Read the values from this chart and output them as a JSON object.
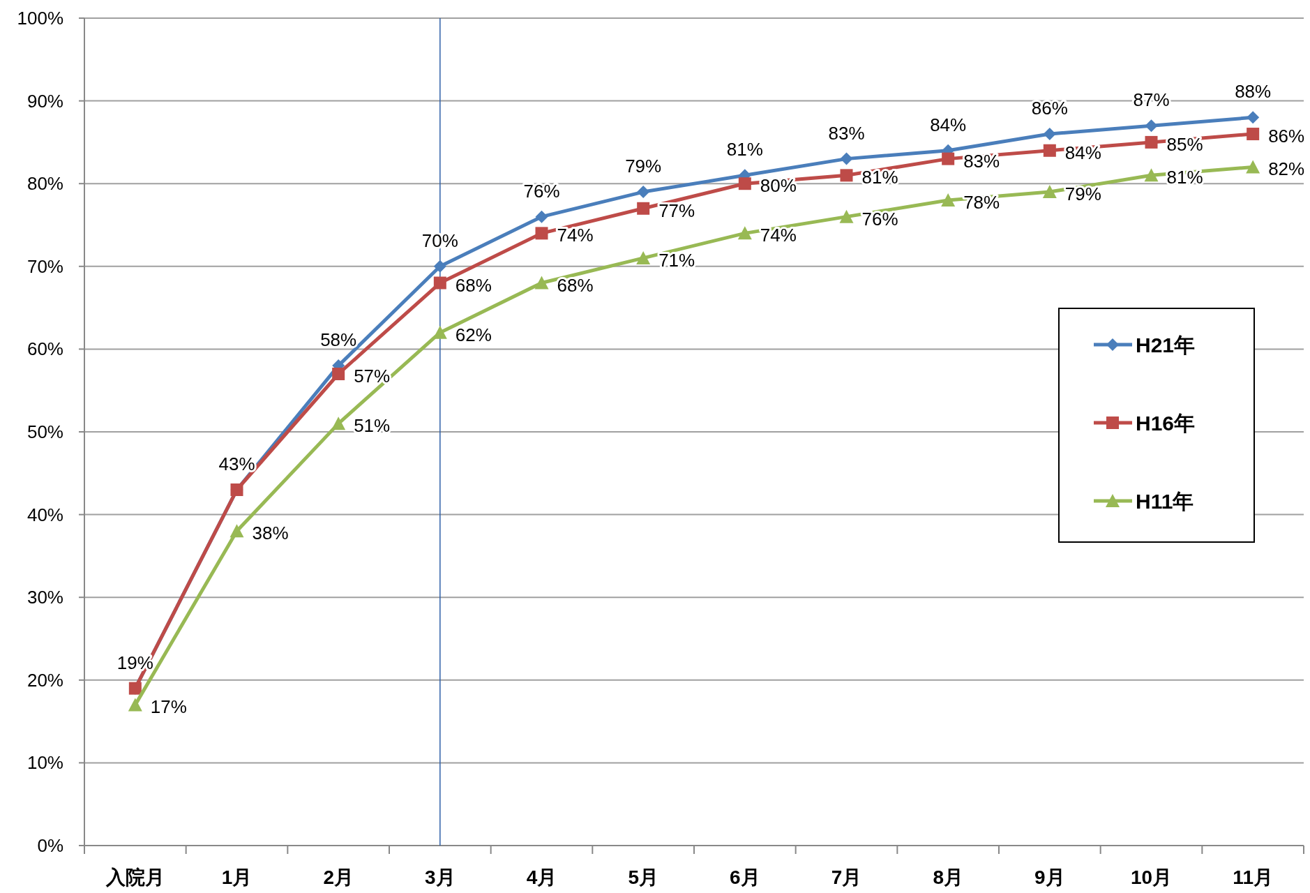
{
  "chart_data": {
    "type": "line",
    "categories": [
      "入院月",
      "1月",
      "2月",
      "3月",
      "4月",
      "5月",
      "6月",
      "7月",
      "8月",
      "9月",
      "10月",
      "11月"
    ],
    "series": [
      {
        "name": "H21年",
        "color": "#4a7ebb",
        "marker": "diamond",
        "values": [
          19,
          43,
          58,
          70,
          76,
          79,
          81,
          83,
          84,
          86,
          87,
          88
        ],
        "value_labels": [
          "19%",
          "43%",
          "58%",
          "70%",
          "76%",
          "79%",
          "81%",
          "83%",
          "84%",
          "86%",
          "87%",
          "88%"
        ]
      },
      {
        "name": "H16年",
        "color": "#be4b48",
        "marker": "square",
        "values": [
          19,
          43,
          57,
          68,
          74,
          77,
          80,
          81,
          83,
          84,
          85,
          86
        ],
        "value_labels": [
          null,
          null,
          "57%",
          "68%",
          "74%",
          "77%",
          "80%",
          "81%",
          "83%",
          "84%",
          "85%",
          "86%"
        ]
      },
      {
        "name": "H11年",
        "color": "#98b954",
        "marker": "triangle",
        "values": [
          17,
          38,
          51,
          62,
          68,
          71,
          74,
          76,
          78,
          79,
          81,
          82
        ],
        "value_labels": [
          "17%",
          "38%",
          "51%",
          "62%",
          "68%",
          "71%",
          "74%",
          "76%",
          "78%",
          "79%",
          "81%",
          "82%"
        ]
      }
    ],
    "ylim": [
      0,
      100
    ],
    "yticks": [
      {
        "value": 0,
        "label": "0%"
      },
      {
        "value": 10,
        "label": "10%"
      },
      {
        "value": 20,
        "label": "20%"
      },
      {
        "value": 30,
        "label": "30%"
      },
      {
        "value": 40,
        "label": "40%"
      },
      {
        "value": 50,
        "label": "50%"
      },
      {
        "value": 60,
        "label": "60%"
      },
      {
        "value": 70,
        "label": "70%"
      },
      {
        "value": 80,
        "label": "80%"
      },
      {
        "value": 90,
        "label": "90%"
      },
      {
        "value": 100,
        "label": "100%"
      }
    ],
    "grid": "y",
    "legend": "right",
    "line_style": "solid",
    "ref_lines": [
      {
        "axis": "x",
        "value": "3月",
        "color": "#2e5fa8"
      }
    ]
  }
}
